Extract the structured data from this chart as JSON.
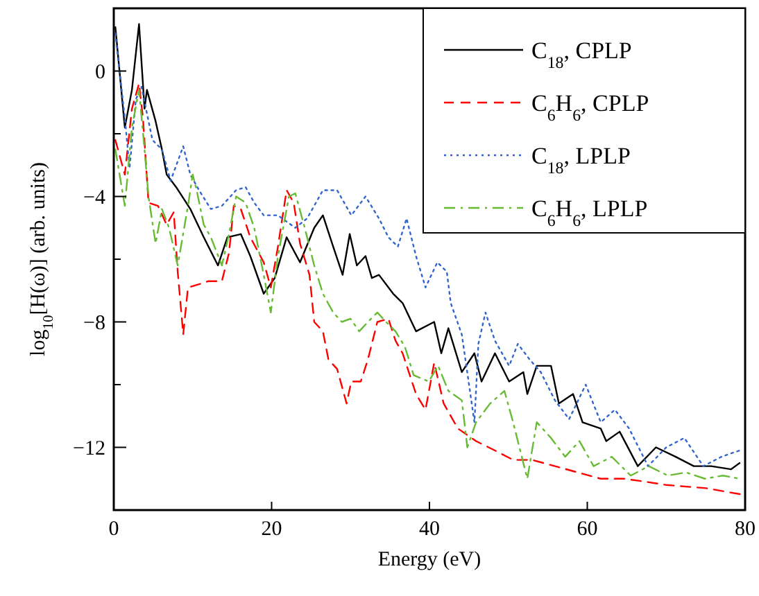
{
  "chart_data": {
    "type": "line",
    "xlabel": "Energy (eV)",
    "ylabel": "log$_{10}$[H(ω)] (arb. units)",
    "xlim": [
      0,
      80
    ],
    "xticks": [
      0,
      20,
      40,
      60,
      80
    ],
    "ylim": [
      -14,
      2
    ],
    "yticks": [
      {
        "value": -12,
        "label": "−12"
      },
      {
        "value": -10,
        "label": null
      },
      {
        "value": -8,
        "label": "−8"
      },
      {
        "value": -6,
        "label": null
      },
      {
        "value": -4,
        "label": "−4"
      },
      {
        "value": -2,
        "label": null
      },
      0
    ],
    "legend": "top right",
    "grid": false,
    "marker": "none",
    "series": [
      {
        "name": "C$_{18}$, CPLP",
        "color": "#000000",
        "line_style": "solid",
        "x": [
          0.2,
          1.4,
          2.3,
          3.2,
          3.9,
          4.2,
          5.3,
          6.1,
          6.7,
          7.9,
          9.7,
          11.4,
          13.2,
          14.4,
          16.1,
          17.3,
          19,
          20.4,
          21.9,
          23.6,
          25.4,
          26.5,
          27.8,
          29,
          29.9,
          30.8,
          31.9,
          32.7,
          33.6,
          35.4,
          36.6,
          38.3,
          40.6,
          41.5,
          42.4,
          44.1,
          45.7,
          46.6,
          48.3,
          50.1,
          51.9,
          52.4,
          53.6,
          55.4,
          56.4,
          58.2,
          59.4,
          61.7,
          62.4,
          64.1,
          66.4,
          68.7,
          71.2,
          73.5,
          75.7,
          78.2,
          79.3
        ],
        "values": [
          1.4,
          -1.8,
          -0.6,
          1.5,
          -1.2,
          -0.6,
          -1.6,
          -2.5,
          -3.3,
          -3.7,
          -4.4,
          -5.3,
          -6.2,
          -5.3,
          -5.2,
          -5.9,
          -7.1,
          -6.6,
          -5.3,
          -6.1,
          -5,
          -4.6,
          -5.6,
          -6.5,
          -5.2,
          -6.2,
          -5.9,
          -6.6,
          -6.5,
          -7.1,
          -7.4,
          -8.3,
          -8,
          -9,
          -8.2,
          -9.6,
          -9,
          -9.9,
          -9,
          -9.9,
          -9.6,
          -10.3,
          -9.4,
          -9.4,
          -10.6,
          -10.3,
          -11.2,
          -11.4,
          -11.8,
          -11.5,
          -12.6,
          -12,
          -12.3,
          -12.6,
          -12.6,
          -12.7,
          -12.5
        ]
      },
      {
        "name": "C$_{6}$H$_{6}$, CPLP",
        "color": "#ff0000",
        "line_style": "dashed",
        "x": [
          0.2,
          1.4,
          2.3,
          3.2,
          3.7,
          4.4,
          5.6,
          6.7,
          7.6,
          8.1,
          8.8,
          9.4,
          10.8,
          12,
          13.7,
          14.6,
          15.2,
          16.1,
          17.3,
          19,
          19.9,
          20.8,
          21.9,
          22.8,
          23.6,
          24.8,
          25.4,
          26.5,
          27.2,
          28.3,
          29.5,
          30.1,
          31.3,
          32.2,
          33.4,
          34.8,
          35.7,
          36.6,
          38.3,
          39.5,
          40.6,
          41.8,
          43.6,
          45.9,
          48.3,
          50.6,
          53,
          55.9,
          58.8,
          61.7,
          64.6,
          67.5,
          70,
          75,
          79.5
        ],
        "values": [
          -2.2,
          -3.3,
          -1.2,
          -0.4,
          -1.5,
          -4.2,
          -4.3,
          -4.9,
          -4.5,
          -6.4,
          -8.4,
          -6.9,
          -6.8,
          -6.7,
          -6.7,
          -5.8,
          -4.3,
          -4.4,
          -5.3,
          -6.1,
          -6.9,
          -5.6,
          -3.8,
          -4.2,
          -5.5,
          -6.5,
          -8,
          -8.3,
          -9.2,
          -9.5,
          -10.6,
          -9.9,
          -9.9,
          -9.2,
          -8,
          -7.9,
          -8.6,
          -9,
          -10.3,
          -10.8,
          -9.3,
          -10.6,
          -11.4,
          -11.8,
          -12.1,
          -12.4,
          -12.4,
          -12.6,
          -12.8,
          -13,
          -13,
          -13.1,
          -13.2,
          -13.3,
          -13.5
        ]
      },
      {
        "name": "C$_{18}$, LPLP",
        "color": "#3366cc",
        "line_style": "dotted",
        "x": [
          0.2,
          1.4,
          2,
          2.8,
          3.5,
          4.9,
          6.1,
          7.2,
          8.8,
          9.7,
          10.8,
          12.3,
          13.7,
          15.5,
          16.7,
          17.8,
          19,
          20.8,
          23,
          24.5,
          26.5,
          28.3,
          30.1,
          31.9,
          33.6,
          34.8,
          36,
          37.1,
          38.3,
          39.5,
          41,
          42.2,
          42.7,
          44.1,
          45.7,
          46.2,
          47.1,
          48.3,
          50.1,
          51.2,
          52.7,
          54.1,
          55.9,
          57.7,
          59.8,
          61.7,
          63.5,
          65.3,
          67.7,
          70,
          72.3,
          74.7,
          77,
          79.3
        ],
        "values": [
          1.2,
          -1.5,
          -3.1,
          -0.9,
          -0.5,
          -2.2,
          -2.5,
          -3.5,
          -2.4,
          -3.3,
          -3.8,
          -4.4,
          -4.3,
          -3.8,
          -3.7,
          -4.2,
          -4.6,
          -4.6,
          -5,
          -4.7,
          -3.8,
          -3.8,
          -4.6,
          -4,
          -4.7,
          -5.3,
          -5.6,
          -4.7,
          -5.9,
          -6.9,
          -6.1,
          -6.4,
          -7.4,
          -8.4,
          -11.2,
          -8.7,
          -7.7,
          -8.6,
          -9.4,
          -8.7,
          -9.2,
          -9.6,
          -10.5,
          -11.1,
          -10,
          -11.2,
          -10.8,
          -11.4,
          -12.6,
          -12,
          -11.7,
          -12.6,
          -12.3,
          -12.1
        ]
      },
      {
        "name": "C$_{6}$H$_{6}$, LPLP",
        "color": "#66bb33",
        "line_style": "dashdot",
        "x": [
          0.2,
          1.4,
          2.3,
          3.2,
          3.9,
          4.4,
          5.3,
          6.1,
          7,
          8.1,
          9.4,
          10,
          10.5,
          11.4,
          12.3,
          13.7,
          14.6,
          15.5,
          16.7,
          17.8,
          19,
          19.9,
          20.8,
          22.2,
          23,
          24.2,
          25.4,
          26.5,
          27.8,
          28.9,
          30,
          31.1,
          32.2,
          33.4,
          34.5,
          35.7,
          36.9,
          38,
          39.9,
          41.1,
          42.4,
          44.1,
          44.8,
          45.9,
          47.7,
          49.5,
          50.6,
          52.4,
          53.6,
          55.4,
          57.2,
          59,
          60.8,
          63.1,
          65.5,
          67.8,
          70.2,
          72.5,
          74.9,
          77.2,
          79.3
        ],
        "values": [
          -2.5,
          -4.3,
          -1.8,
          -0.6,
          -2.5,
          -4,
          -5.5,
          -4.4,
          -5,
          -6.2,
          -4.3,
          -3.3,
          -3.8,
          -4.9,
          -5.3,
          -6.2,
          -5.2,
          -4,
          -4.2,
          -5,
          -6.5,
          -7.7,
          -5.9,
          -4,
          -3.9,
          -5,
          -6.2,
          -7.1,
          -7.7,
          -8,
          -7.9,
          -8.3,
          -8,
          -7.7,
          -8,
          -8.3,
          -8.8,
          -9.7,
          -9.9,
          -9.4,
          -10.2,
          -10.5,
          -12,
          -11.2,
          -10.6,
          -10.2,
          -11.2,
          -13,
          -11.2,
          -11.7,
          -12.3,
          -11.8,
          -12.6,
          -12.3,
          -12.9,
          -12.6,
          -12.9,
          -12.8,
          -13,
          -12.9,
          -13
        ]
      }
    ]
  }
}
